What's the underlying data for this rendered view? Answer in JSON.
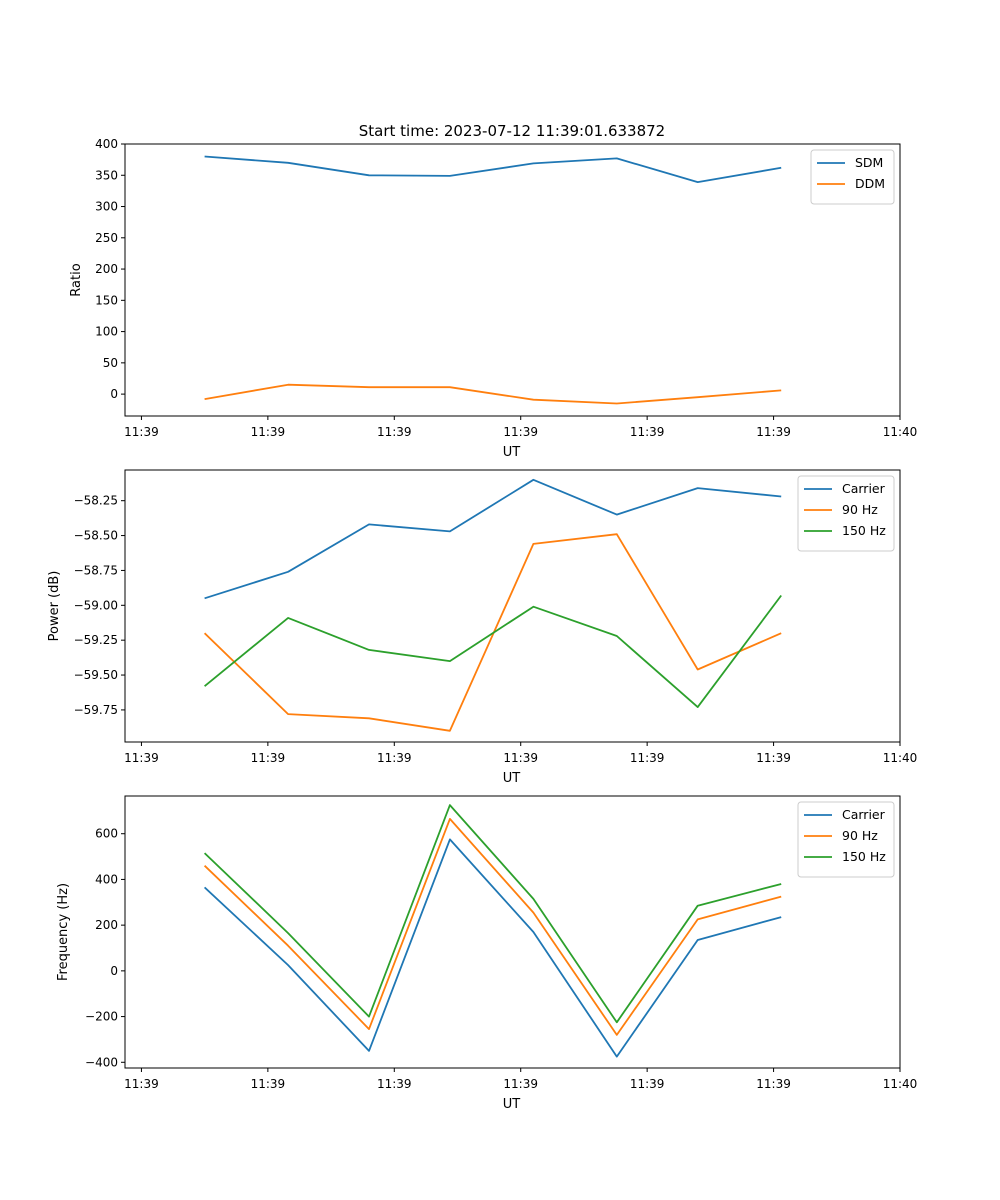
{
  "figure_title": "Start time: 2023-07-12 11:39:01.633872",
  "colors": {
    "c0": "#1f77b4",
    "c1": "#ff7f0e",
    "c2": "#2ca02c"
  },
  "chart_data": [
    {
      "type": "line",
      "xlabel": "UT",
      "ylabel": "Ratio",
      "x_ticks": [
        "11:39",
        "11:39",
        "11:39",
        "11:39",
        "11:39",
        "11:39",
        "11:40"
      ],
      "x": [
        0.5,
        1.16,
        1.8,
        2.44,
        3.1,
        3.76,
        4.4,
        5.06
      ],
      "xlim": [
        -0.13,
        6.0
      ],
      "ylim": [
        -35,
        400
      ],
      "y_ticks": [
        0,
        50,
        100,
        150,
        200,
        250,
        300,
        350,
        400
      ],
      "legend_loc": "top-right",
      "series": [
        {
          "name": "SDM",
          "color": "#1f77b4",
          "values": [
            380,
            370,
            350,
            349,
            369,
            377,
            339,
            362
          ]
        },
        {
          "name": "DDM",
          "color": "#ff7f0e",
          "values": [
            -8,
            15,
            11,
            11,
            -9,
            -15,
            -5,
            6
          ]
        }
      ]
    },
    {
      "type": "line",
      "xlabel": "UT",
      "ylabel": "Power (dB)",
      "x_ticks": [
        "11:39",
        "11:39",
        "11:39",
        "11:39",
        "11:39",
        "11:39",
        "11:40"
      ],
      "x": [
        0.5,
        1.16,
        1.8,
        2.44,
        3.1,
        3.76,
        4.4,
        5.06
      ],
      "xlim": [
        -0.13,
        6.0
      ],
      "ylim": [
        -59.98,
        -58.03
      ],
      "y_ticks": [
        -58.25,
        -58.5,
        -58.75,
        -59.0,
        -59.25,
        -59.5,
        -59.75
      ],
      "legend_loc": "top-right",
      "series": [
        {
          "name": "Carrier",
          "color": "#1f77b4",
          "values": [
            -58.95,
            -58.76,
            -58.42,
            -58.47,
            -58.1,
            -58.35,
            -58.16,
            -58.22
          ]
        },
        {
          "name": "90 Hz",
          "color": "#ff7f0e",
          "values": [
            -59.2,
            -59.78,
            -59.81,
            -59.9,
            -58.56,
            -58.49,
            -59.46,
            -59.2
          ]
        },
        {
          "name": "150 Hz",
          "color": "#2ca02c",
          "values": [
            -59.58,
            -59.09,
            -59.32,
            -59.4,
            -59.01,
            -59.22,
            -59.73,
            -58.93
          ]
        }
      ]
    },
    {
      "type": "line",
      "xlabel": "UT",
      "ylabel": "Frequency (Hz)",
      "x_ticks": [
        "11:39",
        "11:39",
        "11:39",
        "11:39",
        "11:39",
        "11:39",
        "11:40"
      ],
      "x": [
        0.5,
        1.16,
        1.8,
        2.44,
        3.1,
        3.76,
        4.4,
        5.06
      ],
      "xlim": [
        -0.13,
        6.0
      ],
      "ylim": [
        -425,
        765
      ],
      "y_ticks": [
        -400,
        -200,
        0,
        200,
        400,
        600
      ],
      "legend_loc": "top-right",
      "series": [
        {
          "name": "Carrier",
          "color": "#1f77b4",
          "values": [
            365,
            25,
            -350,
            575,
            170,
            -375,
            135,
            235
          ]
        },
        {
          "name": "90 Hz",
          "color": "#ff7f0e",
          "values": [
            460,
            110,
            -255,
            665,
            255,
            -280,
            225,
            325
          ]
        },
        {
          "name": "150 Hz",
          "color": "#2ca02c",
          "values": [
            515,
            165,
            -200,
            725,
            315,
            -225,
            285,
            380
          ]
        }
      ]
    }
  ]
}
